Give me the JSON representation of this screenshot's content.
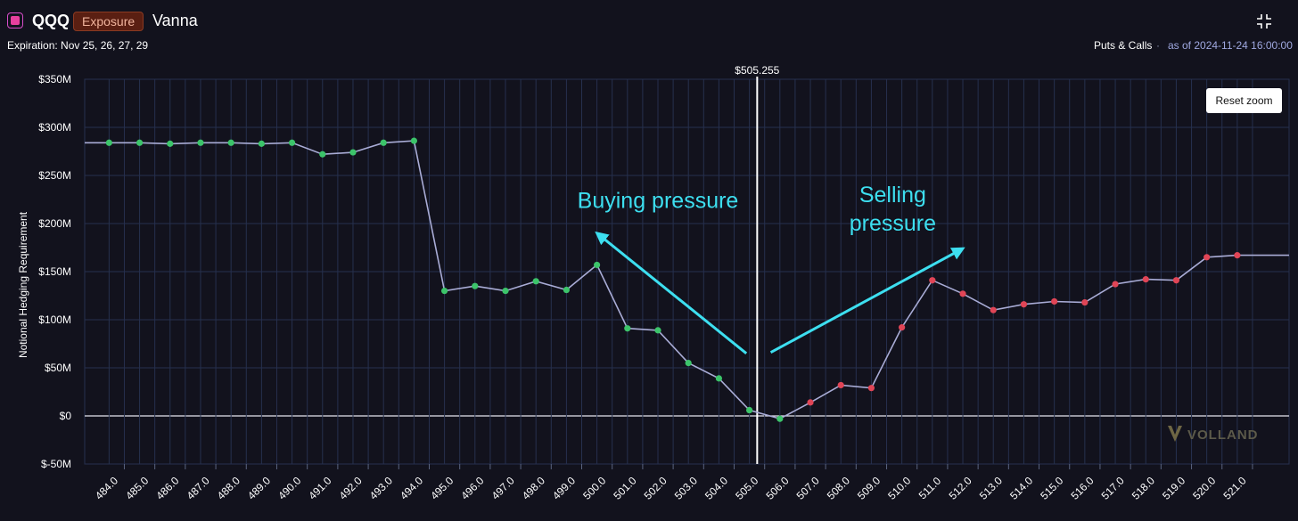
{
  "header": {
    "ticker": "QQQ",
    "mode_badge": "Exposure",
    "metric": "Vanna",
    "expiration_label": "Expiration: Nov 25, 26, 27, 29",
    "scope_label": "Puts & Calls",
    "separator": "·",
    "as_of_label": "as of 2024-11-24 16:00:00",
    "badge_icon": "square-icon",
    "collapse_icon": "collapse-icon"
  },
  "controls": {
    "reset_zoom_label": "Reset zoom"
  },
  "annotations": {
    "buying": [
      "Buying pressure"
    ],
    "selling": [
      "Selling",
      "pressure"
    ]
  },
  "colors": {
    "background": "#12121d",
    "line": "#a9acd6",
    "positive_point": "#3cc46a",
    "negative_point": "#e04556",
    "annotation": "#3ddff0",
    "spot_line": "#ffffff"
  },
  "watermark": "VOLLAND",
  "chart_data": {
    "type": "line",
    "ylabel": "Notional Hedging Requirement",
    "xlabel": "",
    "title": "",
    "ylim": [
      -50,
      350
    ],
    "y_ticks": [
      -50,
      0,
      50,
      100,
      150,
      200,
      250,
      300,
      350
    ],
    "y_tick_labels": [
      "$-50M",
      "$0",
      "$50M",
      "$100M",
      "$150M",
      "$200M",
      "$250M",
      "$300M",
      "$350M"
    ],
    "xlim": [
      483.2,
      522.7
    ],
    "x_ticks": [
      484,
      485,
      486,
      487,
      488,
      489,
      490,
      491,
      492,
      493,
      494,
      495,
      496,
      497,
      498,
      499,
      500,
      501,
      502,
      503,
      504,
      505,
      506,
      507,
      508,
      509,
      510,
      511,
      512,
      513,
      514,
      515,
      516,
      517,
      518,
      519,
      520,
      521
    ],
    "x_tick_labels": [
      "484.0",
      "485.0",
      "486.0",
      "487.0",
      "488.0",
      "489.0",
      "490.0",
      "491.0",
      "492.0",
      "493.0",
      "494.0",
      "495.0",
      "496.0",
      "497.0",
      "498.0",
      "499.0",
      "500.0",
      "501.0",
      "502.0",
      "503.0",
      "504.0",
      "505.0",
      "506.0",
      "507.0",
      "508.0",
      "509.0",
      "510.0",
      "511.0",
      "512.0",
      "513.0",
      "514.0",
      "515.0",
      "516.0",
      "517.0",
      "518.0",
      "519.0",
      "520.0",
      "521.0"
    ],
    "grid": true,
    "spot": {
      "value": 505.255,
      "label": "$505.255"
    },
    "line_start": [
      483.2,
      284
    ],
    "line_end": [
      522.7,
      167
    ],
    "points": [
      {
        "x": 484.0,
        "y": 284,
        "sign": "positive"
      },
      {
        "x": 485.0,
        "y": 284,
        "sign": "positive"
      },
      {
        "x": 486.0,
        "y": 283,
        "sign": "positive"
      },
      {
        "x": 487.0,
        "y": 284,
        "sign": "positive"
      },
      {
        "x": 488.0,
        "y": 284,
        "sign": "positive"
      },
      {
        "x": 489.0,
        "y": 283,
        "sign": "positive"
      },
      {
        "x": 490.0,
        "y": 284,
        "sign": "positive"
      },
      {
        "x": 491.0,
        "y": 272,
        "sign": "positive"
      },
      {
        "x": 492.0,
        "y": 274,
        "sign": "positive"
      },
      {
        "x": 493.0,
        "y": 284,
        "sign": "positive"
      },
      {
        "x": 494.0,
        "y": 286,
        "sign": "positive"
      },
      {
        "x": 495.0,
        "y": 130,
        "sign": "positive"
      },
      {
        "x": 496.0,
        "y": 135,
        "sign": "positive"
      },
      {
        "x": 497.0,
        "y": 130,
        "sign": "positive"
      },
      {
        "x": 498.0,
        "y": 140,
        "sign": "positive"
      },
      {
        "x": 499.0,
        "y": 131,
        "sign": "positive"
      },
      {
        "x": 500.0,
        "y": 157,
        "sign": "positive"
      },
      {
        "x": 501.0,
        "y": 91,
        "sign": "positive"
      },
      {
        "x": 502.0,
        "y": 89,
        "sign": "positive"
      },
      {
        "x": 503.0,
        "y": 55,
        "sign": "positive"
      },
      {
        "x": 504.0,
        "y": 39,
        "sign": "positive"
      },
      {
        "x": 505.0,
        "y": 6,
        "sign": "positive"
      },
      {
        "x": 506.0,
        "y": -3,
        "sign": "positive"
      },
      {
        "x": 507.0,
        "y": 14,
        "sign": "negative"
      },
      {
        "x": 508.0,
        "y": 32,
        "sign": "negative"
      },
      {
        "x": 509.0,
        "y": 29,
        "sign": "negative"
      },
      {
        "x": 510.0,
        "y": 92,
        "sign": "negative"
      },
      {
        "x": 511.0,
        "y": 141,
        "sign": "negative"
      },
      {
        "x": 512.0,
        "y": 127,
        "sign": "negative"
      },
      {
        "x": 513.0,
        "y": 110,
        "sign": "negative"
      },
      {
        "x": 514.0,
        "y": 116,
        "sign": "negative"
      },
      {
        "x": 515.0,
        "y": 119,
        "sign": "negative"
      },
      {
        "x": 516.0,
        "y": 118,
        "sign": "negative"
      },
      {
        "x": 517.0,
        "y": 137,
        "sign": "negative"
      },
      {
        "x": 518.0,
        "y": 142,
        "sign": "negative"
      },
      {
        "x": 519.0,
        "y": 141,
        "sign": "negative"
      },
      {
        "x": 520.0,
        "y": 165,
        "sign": "negative"
      },
      {
        "x": 521.0,
        "y": 167,
        "sign": "negative"
      }
    ],
    "arrows": [
      {
        "label": "buying",
        "from": [
          504.9,
          65
        ],
        "to": [
          500.0,
          190
        ]
      },
      {
        "label": "selling",
        "from": [
          505.7,
          66
        ],
        "to": [
          512.0,
          174
        ]
      }
    ],
    "annotation_anchor": {
      "buying": [
        502.0,
        216
      ],
      "selling": [
        509.7,
        222
      ]
    }
  }
}
